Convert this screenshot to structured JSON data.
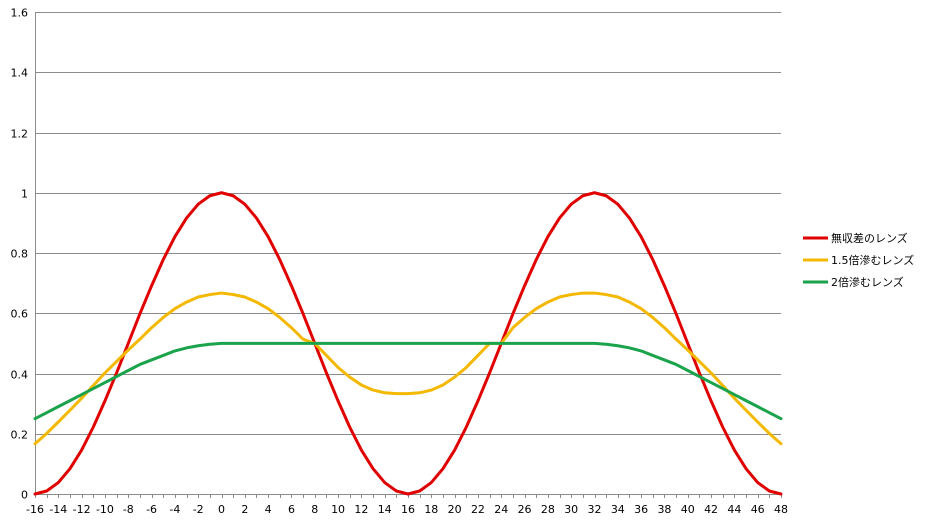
{
  "chart_data": {
    "type": "line",
    "title": "",
    "xlabel": "",
    "ylabel": "",
    "xlim": [
      -16,
      48
    ],
    "ylim": [
      0,
      1.6
    ],
    "x_ticks": [
      "-16",
      "-14",
      "-12",
      "-10",
      "-8",
      "-6",
      "-4",
      "-2",
      "0",
      "2",
      "4",
      "6",
      "8",
      "10",
      "12",
      "14",
      "16",
      "18",
      "20",
      "22",
      "24",
      "26",
      "28",
      "30",
      "32",
      "34",
      "36",
      "38",
      "40",
      "42",
      "44",
      "46",
      "48"
    ],
    "y_ticks": [
      "0",
      "0.2",
      "0.4",
      "0.6",
      "0.8",
      "1",
      "1.2",
      "1.4",
      "1.6"
    ],
    "grid": "horizontal",
    "legend_position": "right",
    "x": [
      -16,
      -15,
      -14,
      -13,
      -12,
      -11,
      -10,
      -9,
      -8,
      -7,
      -6,
      -5,
      -4,
      -3,
      -2,
      -1,
      0,
      1,
      2,
      3,
      4,
      5,
      6,
      7,
      8,
      9,
      10,
      11,
      12,
      13,
      14,
      15,
      16,
      17,
      18,
      19,
      20,
      21,
      22,
      23,
      24,
      25,
      26,
      27,
      28,
      29,
      30,
      31,
      32,
      33,
      34,
      35,
      36,
      37,
      38,
      39,
      40,
      41,
      42,
      43,
      44,
      45,
      46,
      47,
      48
    ],
    "series": [
      {
        "name": "無収差のレンズ",
        "color": "#e00000",
        "values": [
          0.0,
          0.01,
          0.038,
          0.084,
          0.146,
          0.222,
          0.309,
          0.402,
          0.5,
          0.598,
          0.691,
          0.778,
          0.854,
          0.916,
          0.962,
          0.99,
          1.0,
          0.99,
          0.962,
          0.916,
          0.854,
          0.778,
          0.691,
          0.598,
          0.5,
          0.402,
          0.309,
          0.222,
          0.146,
          0.084,
          0.038,
          0.01,
          0.0,
          0.01,
          0.038,
          0.084,
          0.146,
          0.222,
          0.309,
          0.402,
          0.5,
          0.598,
          0.691,
          0.778,
          0.854,
          0.916,
          0.962,
          0.99,
          1.0,
          0.99,
          0.962,
          0.916,
          0.854,
          0.778,
          0.691,
          0.598,
          0.5,
          0.402,
          0.309,
          0.222,
          0.146,
          0.084,
          0.038,
          0.01,
          0.0
        ]
      },
      {
        "name": "1.5倍滲むレンズ",
        "color": "#f5b800",
        "values": [
          0.167,
          0.201,
          0.239,
          0.278,
          0.318,
          0.36,
          0.402,
          0.44,
          0.478,
          0.514,
          0.552,
          0.586,
          0.615,
          0.637,
          0.654,
          0.662,
          0.667,
          0.662,
          0.654,
          0.637,
          0.615,
          0.586,
          0.552,
          0.514,
          0.5,
          0.46,
          0.42,
          0.388,
          0.362,
          0.345,
          0.336,
          0.333,
          0.333,
          0.336,
          0.345,
          0.362,
          0.388,
          0.42,
          0.46,
          0.5,
          0.5,
          0.552,
          0.586,
          0.615,
          0.637,
          0.654,
          0.662,
          0.667,
          0.667,
          0.662,
          0.654,
          0.637,
          0.615,
          0.586,
          0.552,
          0.514,
          0.478,
          0.44,
          0.402,
          0.36,
          0.318,
          0.278,
          0.239,
          0.201,
          0.167
        ]
      },
      {
        "name": "2倍滲むレンズ",
        "color": "#1aa34a",
        "values": [
          0.25,
          0.27,
          0.29,
          0.31,
          0.33,
          0.35,
          0.37,
          0.39,
          0.41,
          0.43,
          0.445,
          0.46,
          0.475,
          0.485,
          0.492,
          0.497,
          0.5,
          0.5,
          0.5,
          0.5,
          0.5,
          0.5,
          0.5,
          0.5,
          0.5,
          0.5,
          0.5,
          0.5,
          0.5,
          0.5,
          0.5,
          0.5,
          0.5,
          0.5,
          0.5,
          0.5,
          0.5,
          0.5,
          0.5,
          0.5,
          0.5,
          0.5,
          0.5,
          0.5,
          0.5,
          0.5,
          0.5,
          0.5,
          0.5,
          0.497,
          0.492,
          0.485,
          0.475,
          0.46,
          0.445,
          0.43,
          0.41,
          0.39,
          0.37,
          0.35,
          0.33,
          0.31,
          0.29,
          0.27,
          0.25
        ]
      }
    ]
  }
}
